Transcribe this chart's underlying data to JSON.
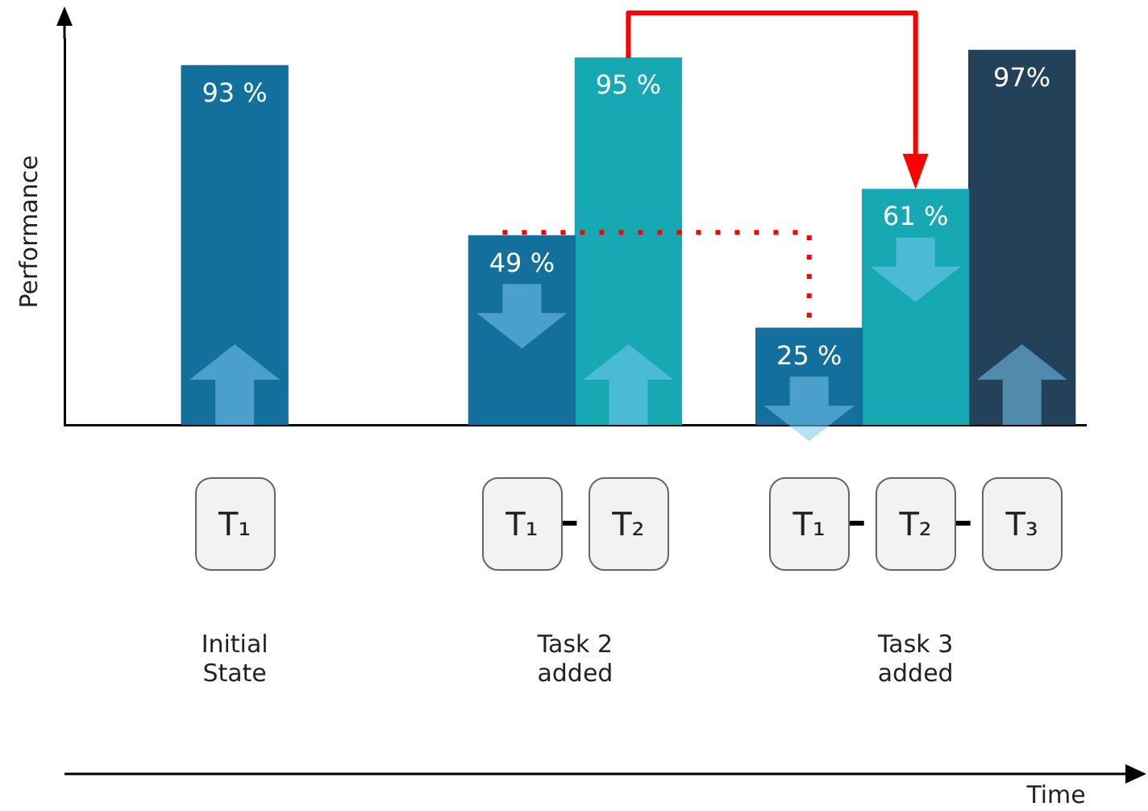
{
  "chart_data": {
    "type": "bar",
    "xlabel": "Time",
    "ylabel": "Performance",
    "categories": [
      "Initial State",
      "Task 2 added",
      "Task 3 added"
    ],
    "series": [
      {
        "name": "T₁",
        "color": "#136f9c",
        "values": [
          93,
          49,
          25
        ],
        "value_labels": [
          "93 %",
          "49 %",
          "25 %"
        ]
      },
      {
        "name": "T₂",
        "color": "#16a9b4",
        "values": [
          null,
          95,
          61
        ],
        "value_labels": [
          null,
          "95 %",
          "61 %"
        ]
      },
      {
        "name": "T₃",
        "color": "#234158",
        "values": [
          null,
          null,
          97
        ],
        "value_labels": [
          null,
          null,
          "97%"
        ]
      }
    ]
  }
}
